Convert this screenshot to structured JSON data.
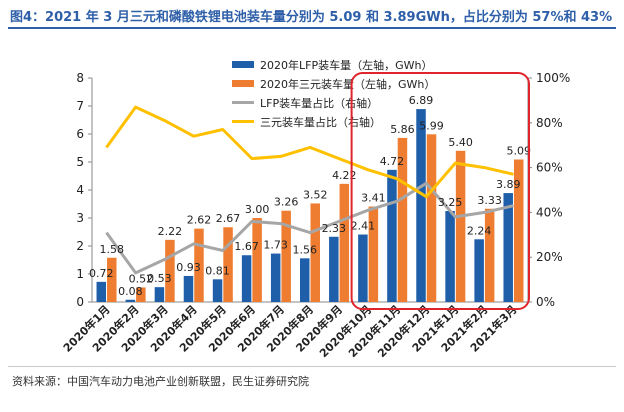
{
  "header": {
    "title": "图4：2021 年 3 月三元和磷酸铁锂电池装车量分别为 5.09 和 3.89GWh，占比分别为 57%和 43%"
  },
  "footer": {
    "source": "资料来源：中国汽车动力电池产业创新联盟，民生证券研究院"
  },
  "colors": {
    "lfp_bar": "#1f5faa",
    "ternary_bar": "#ef7d31",
    "lfp_share_line": "#a6a6a6",
    "ternary_share_line": "#ffc000",
    "highlight_box": "#e0242b",
    "title": "#2e5fa8"
  },
  "chart_data": {
    "type": "bar",
    "categories": [
      "2020年1月",
      "2020年2月",
      "2020年3月",
      "2020年4月",
      "2020年5月",
      "2020年6月",
      "2020年7月",
      "2020年8月",
      "2020年9月",
      "2020年10月",
      "2020年11月",
      "2020年12月",
      "2021年1月",
      "2021年2月",
      "2021年3月"
    ],
    "series": [
      {
        "name": "2020年LFP装车量（左轴，GWh）",
        "type": "bar",
        "axis": "left",
        "values": [
          0.72,
          0.08,
          0.53,
          0.93,
          0.81,
          1.67,
          1.73,
          1.56,
          2.33,
          2.41,
          4.72,
          6.89,
          3.25,
          2.24,
          3.89
        ]
      },
      {
        "name": "2020年三元装车量（左轴，GWh）",
        "type": "bar",
        "axis": "left",
        "values": [
          1.58,
          0.52,
          2.22,
          2.62,
          2.67,
          3.0,
          3.26,
          3.52,
          4.22,
          3.41,
          5.86,
          5.99,
          5.4,
          3.33,
          5.09
        ]
      },
      {
        "name": "LFP装车量占比（右轴）",
        "type": "line",
        "axis": "right",
        "values": [
          31,
          13,
          19,
          26,
          23,
          36,
          35,
          31,
          36,
          41,
          45,
          53,
          38,
          40,
          43
        ]
      },
      {
        "name": "三元装车量占比（右轴）",
        "type": "line",
        "axis": "right",
        "values": [
          69,
          87,
          81,
          74,
          77,
          64,
          65,
          69,
          64,
          59,
          55,
          47,
          62,
          60,
          57
        ]
      }
    ],
    "y_left": {
      "ylim": [
        0,
        8
      ],
      "ticks": [
        "0",
        "1",
        "2",
        "3",
        "4",
        "5",
        "6",
        "7",
        "8"
      ]
    },
    "y_right": {
      "ylim": [
        0,
        100
      ],
      "ticks": [
        "0%",
        "20%",
        "40%",
        "60%",
        "80%",
        "100%"
      ]
    },
    "grid": false,
    "legend_position": "top-center",
    "highlight_categories": [
      "2020年10月",
      "2021年3月"
    ]
  }
}
